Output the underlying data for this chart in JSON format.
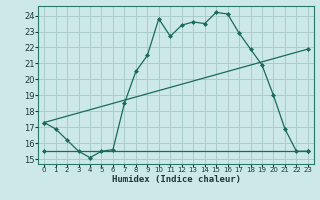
{
  "xlabel": "Humidex (Indice chaleur)",
  "ylabel": "",
  "bg_color": "#cce8e8",
  "grid_color": "#aacccc",
  "line_color": "#1a6b5a",
  "xlim": [
    -0.5,
    23.5
  ],
  "ylim": [
    14.7,
    24.6
  ],
  "xticks": [
    0,
    1,
    2,
    3,
    4,
    5,
    6,
    7,
    8,
    9,
    10,
    11,
    12,
    13,
    14,
    15,
    16,
    17,
    18,
    19,
    20,
    21,
    22,
    23
  ],
  "yticks": [
    15,
    16,
    17,
    18,
    19,
    20,
    21,
    22,
    23,
    24
  ],
  "line1_x": [
    0,
    1,
    2,
    3,
    4,
    5,
    6,
    7,
    8,
    9,
    10,
    11,
    12,
    13,
    14,
    15,
    16,
    17,
    18,
    19,
    20,
    21,
    22,
    23
  ],
  "line1_y": [
    17.3,
    16.9,
    16.2,
    15.5,
    15.1,
    15.5,
    15.6,
    18.5,
    20.5,
    21.5,
    23.8,
    22.7,
    23.4,
    23.6,
    23.5,
    24.2,
    24.1,
    22.9,
    21.9,
    20.9,
    19.0,
    16.9,
    15.5,
    15.5
  ],
  "line2_x": [
    0,
    23
  ],
  "line2_y": [
    15.5,
    15.5
  ],
  "line3_x": [
    0,
    23
  ],
  "line3_y": [
    17.3,
    21.9
  ]
}
